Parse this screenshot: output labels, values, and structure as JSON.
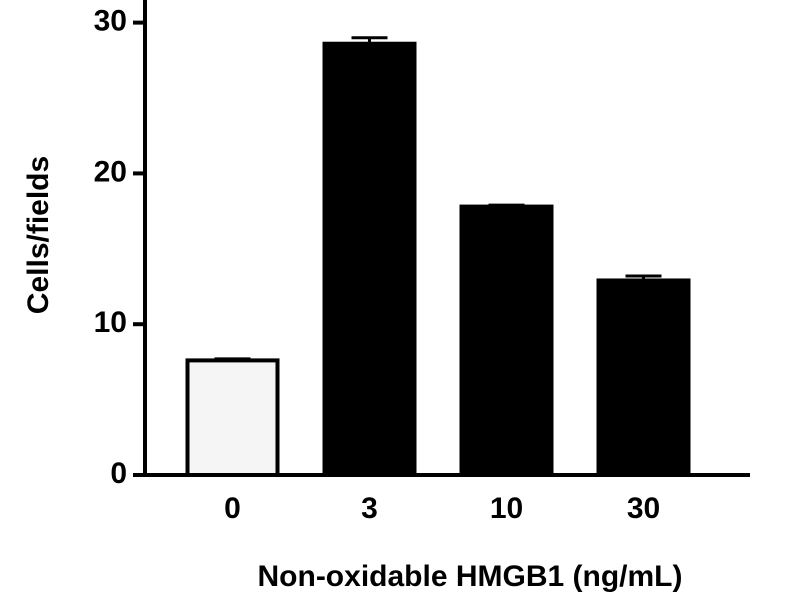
{
  "chart_data": {
    "type": "bar",
    "x_label": "Non-oxidable HMGB1 (ng/mL)",
    "y_label": "Cells/fields",
    "categories": [
      "0",
      "3",
      "10",
      "30"
    ],
    "values": [
      7.6,
      28.6,
      17.8,
      12.9
    ],
    "errors": [
      0.1,
      0.4,
      0.1,
      0.3
    ],
    "colors": [
      "#f5f5f5",
      "#000000",
      "#000000",
      "#000000"
    ],
    "ylim": [
      0,
      31.5
    ],
    "yticks": [
      0,
      10,
      20,
      30
    ]
  }
}
